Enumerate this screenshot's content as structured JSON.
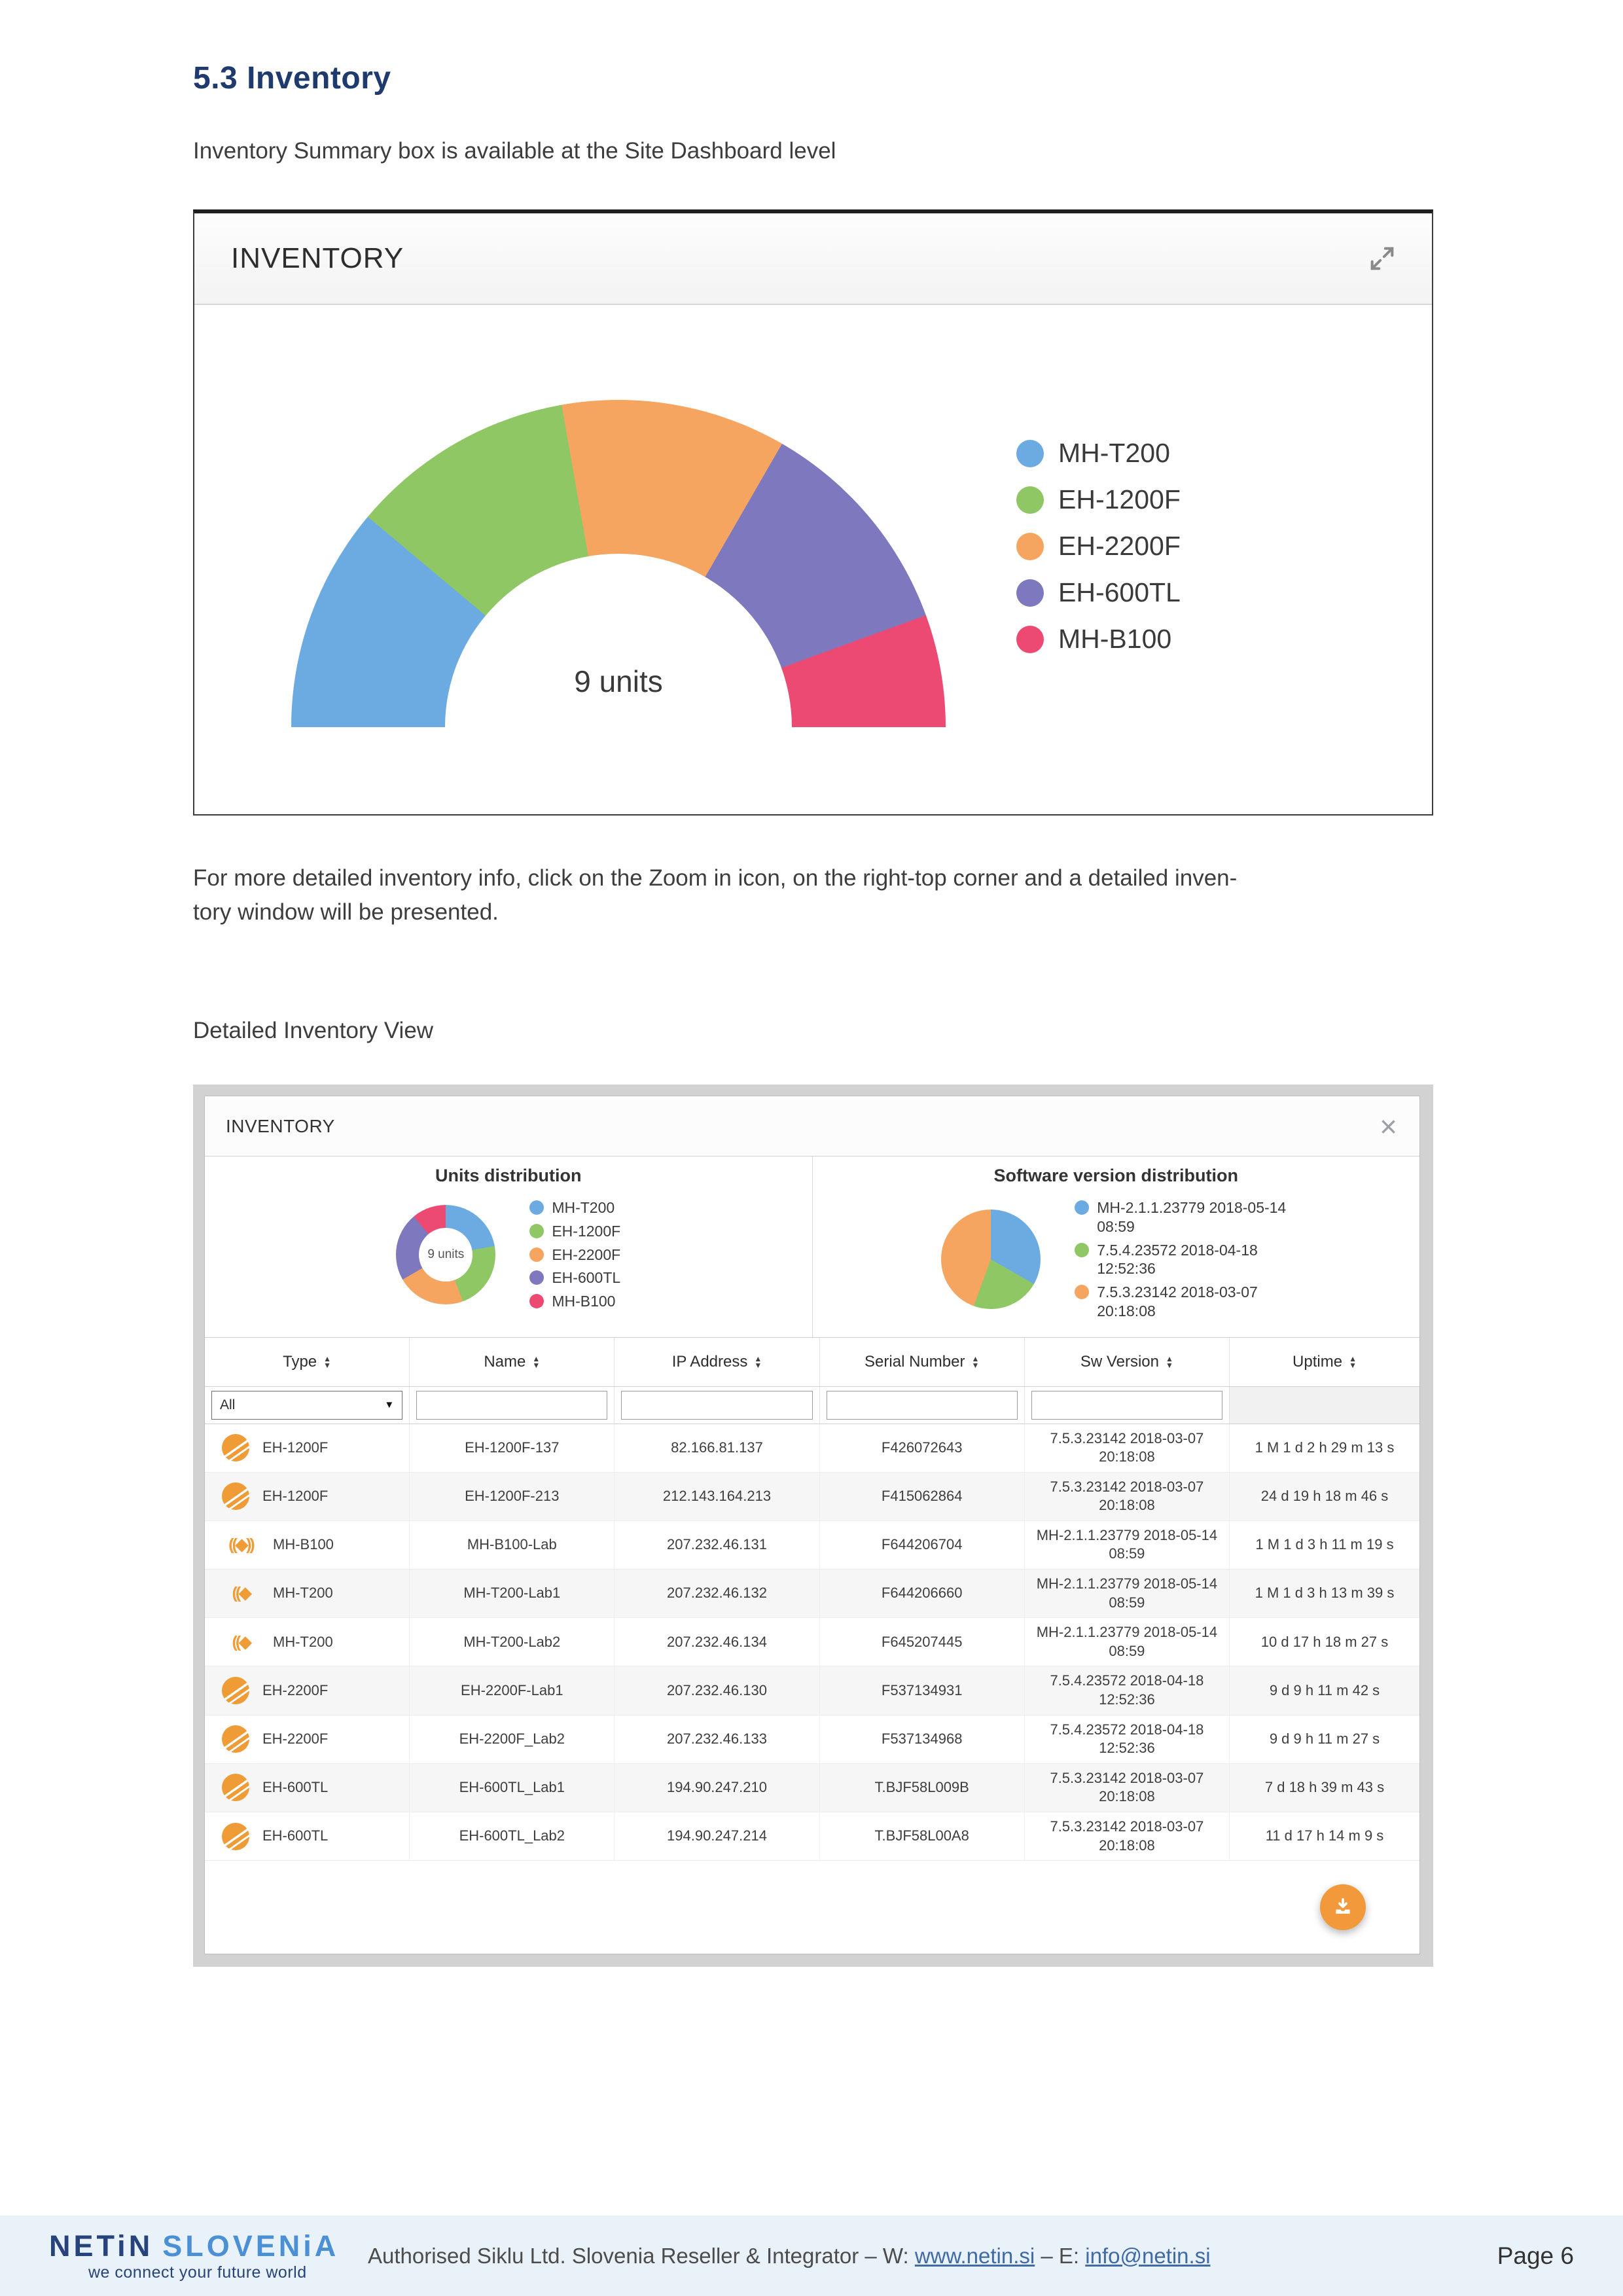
{
  "page": {
    "heading": "5.3 Inventory",
    "intro": "Inventory Summary box is available at the Site Dashboard level",
    "zoom_note": "For more detailed inventory info, click on the Zoom in icon, on the right-top corner and a detailed inven-\ntory window will be presented.",
    "detailed_label": "Detailed Inventory View"
  },
  "summary_widget": {
    "title": "INVENTORY"
  },
  "modal": {
    "title": "INVENTORY",
    "close_glyph": "×",
    "table": {
      "headers": [
        "Type",
        "Name",
        "IP Address",
        "Serial Number",
        "Sw Version",
        "Uptime"
      ],
      "type_filter_value": "All",
      "rows": [
        {
          "icon": "siklu",
          "type": "EH-1200F",
          "name": "EH-1200F-137",
          "ip": "82.166.81.137",
          "serial": "F426072643",
          "sw": "7.5.3.23142 2018-03-07 20:18:08",
          "uptime": "1 M 1 d 2 h 29 m 13 s"
        },
        {
          "icon": "siklu",
          "type": "EH-1200F",
          "name": "EH-1200F-213",
          "ip": "212.143.164.213",
          "serial": "F415062864",
          "sw": "7.5.3.23142 2018-03-07 20:18:08",
          "uptime": "24 d 19 h 18 m 46 s"
        },
        {
          "icon": "ant-double",
          "type": "MH-B100",
          "name": "MH-B100-Lab",
          "ip": "207.232.46.131",
          "serial": "F644206704",
          "sw": "MH-2.1.1.23779 2018-05-14 08:59",
          "uptime": "1 M 1 d 3 h 11 m 19 s"
        },
        {
          "icon": "ant-single",
          "type": "MH-T200",
          "name": "MH-T200-Lab1",
          "ip": "207.232.46.132",
          "serial": "F644206660",
          "sw": "MH-2.1.1.23779 2018-05-14 08:59",
          "uptime": "1 M 1 d 3 h 13 m 39 s"
        },
        {
          "icon": "ant-single",
          "type": "MH-T200",
          "name": "MH-T200-Lab2",
          "ip": "207.232.46.134",
          "serial": "F645207445",
          "sw": "MH-2.1.1.23779 2018-05-14 08:59",
          "uptime": "10 d 17 h 18 m 27 s"
        },
        {
          "icon": "siklu",
          "type": "EH-2200F",
          "name": "EH-2200F-Lab1",
          "ip": "207.232.46.130",
          "serial": "F537134931",
          "sw": "7.5.4.23572 2018-04-18 12:52:36",
          "uptime": "9 d 9 h 11 m 42 s"
        },
        {
          "icon": "siklu",
          "type": "EH-2200F",
          "name": "EH-2200F_Lab2",
          "ip": "207.232.46.133",
          "serial": "F537134968",
          "sw": "7.5.4.23572 2018-04-18 12:52:36",
          "uptime": "9 d 9 h 11 m 27 s"
        },
        {
          "icon": "siklu",
          "type": "EH-600TL",
          "name": "EH-600TL_Lab1",
          "ip": "194.90.247.210",
          "serial": "T.BJF58L009B",
          "sw": "7.5.3.23142 2018-03-07 20:18:08",
          "uptime": "7 d 18 h 39 m 43 s"
        },
        {
          "icon": "siklu",
          "type": "EH-600TL",
          "name": "EH-600TL_Lab2",
          "ip": "194.90.247.214",
          "serial": "T.BJF58L00A8",
          "sw": "7.5.3.23142 2018-03-07 20:18:08",
          "uptime": "11 d 17 h 14 m 9 s"
        }
      ]
    }
  },
  "chart_data": [
    {
      "type": "half-donut",
      "title": "Inventory summary",
      "center_label": "9 units",
      "total_units": 9,
      "legend_position": "right",
      "series": [
        {
          "name": "MH-T200",
          "value": 2,
          "color": "#6cabe2"
        },
        {
          "name": "EH-1200F",
          "value": 2,
          "color": "#8ec763"
        },
        {
          "name": "EH-2200F",
          "value": 2,
          "color": "#f5a55f"
        },
        {
          "name": "EH-600TL",
          "value": 2,
          "color": "#7e79be"
        },
        {
          "name": "MH-B100",
          "value": 1,
          "color": "#ec4a72"
        }
      ]
    },
    {
      "type": "donut",
      "title": "Units distribution",
      "center_label": "9 units",
      "total_units": 9,
      "legend_position": "right",
      "series": [
        {
          "name": "MH-T200",
          "value": 2,
          "color": "#6cabe2"
        },
        {
          "name": "EH-1200F",
          "value": 2,
          "color": "#8ec763"
        },
        {
          "name": "EH-2200F",
          "value": 2,
          "color": "#f5a55f"
        },
        {
          "name": "EH-600TL",
          "value": 2,
          "color": "#7e79be"
        },
        {
          "name": "MH-B100",
          "value": 1,
          "color": "#ec4a72"
        }
      ]
    },
    {
      "type": "pie",
      "title": "Software version distribution",
      "total_units": 9,
      "legend_position": "right",
      "series": [
        {
          "name": "MH-2.1.1.23779 2018-05-14 08:59",
          "value": 3,
          "color": "#6cabe2"
        },
        {
          "name": "7.5.4.23572 2018-04-18 12:52:36",
          "value": 2,
          "color": "#8ec763"
        },
        {
          "name": "7.5.3.23142 2018-03-07 20:18:08",
          "value": 4,
          "color": "#f5a55f"
        }
      ]
    }
  ],
  "footer": {
    "logo_primary": "NETiN",
    "logo_secondary": "SLOVENiA",
    "logo_tagline": "we connect your future world",
    "text_prefix": "Authorised Siklu Ltd. Slovenia Reseller & Integrator – W: ",
    "website": "www.netin.si",
    "text_mid": " – E: ",
    "email": "info@netin.si",
    "page_number": "Page 6"
  },
  "colors": {
    "accent_orange": "#ef9b36",
    "heading_navy": "#1f3a6d",
    "footer_bg": "#e9f1f9",
    "link_blue": "#3f6aa3"
  },
  "icon_glyphs": {
    "ant-double": "((◆))",
    "ant-single": "((◆"
  }
}
